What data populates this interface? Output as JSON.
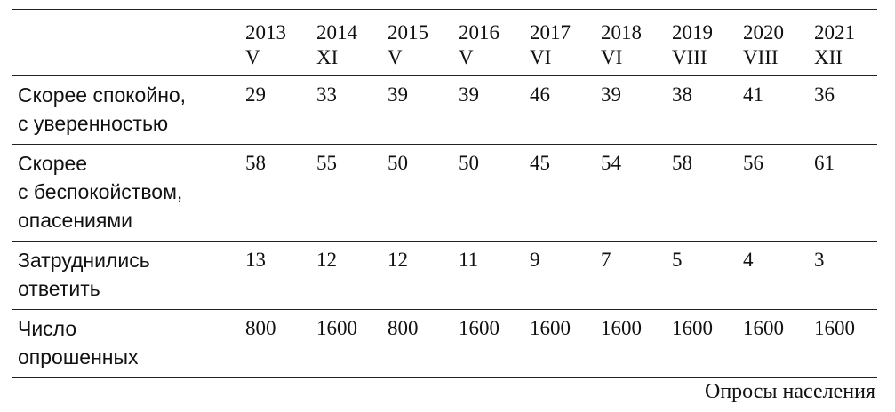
{
  "table": {
    "columns": [
      {
        "year": 2013,
        "month": "V"
      },
      {
        "year": 2014,
        "month": "XI"
      },
      {
        "year": 2015,
        "month": "V"
      },
      {
        "year": 2016,
        "month": "V"
      },
      {
        "year": 2017,
        "month": "VI"
      },
      {
        "year": 2018,
        "month": "VI"
      },
      {
        "year": 2019,
        "month": "VIII"
      },
      {
        "year": 2020,
        "month": "VIII"
      },
      {
        "year": 2021,
        "month": "XII"
      }
    ],
    "rows": [
      {
        "label": [
          "Скорее спокойно,",
          "с уверенностью"
        ],
        "values": [
          29,
          33,
          39,
          39,
          46,
          39,
          38,
          41,
          36
        ]
      },
      {
        "label": [
          "Скорее",
          "с беспокойством,",
          "опасениями"
        ],
        "values": [
          58,
          55,
          50,
          50,
          45,
          54,
          58,
          56,
          61
        ]
      },
      {
        "label": [
          "Затруднились",
          "ответить"
        ],
        "values": [
          13,
          12,
          12,
          11,
          9,
          7,
          5,
          4,
          3
        ]
      },
      {
        "label": [
          "Число",
          "опрошенных"
        ],
        "values": [
          800,
          1600,
          800,
          1600,
          1600,
          1600,
          1600,
          1600,
          1600
        ]
      }
    ]
  },
  "note": "Опросы населения"
}
